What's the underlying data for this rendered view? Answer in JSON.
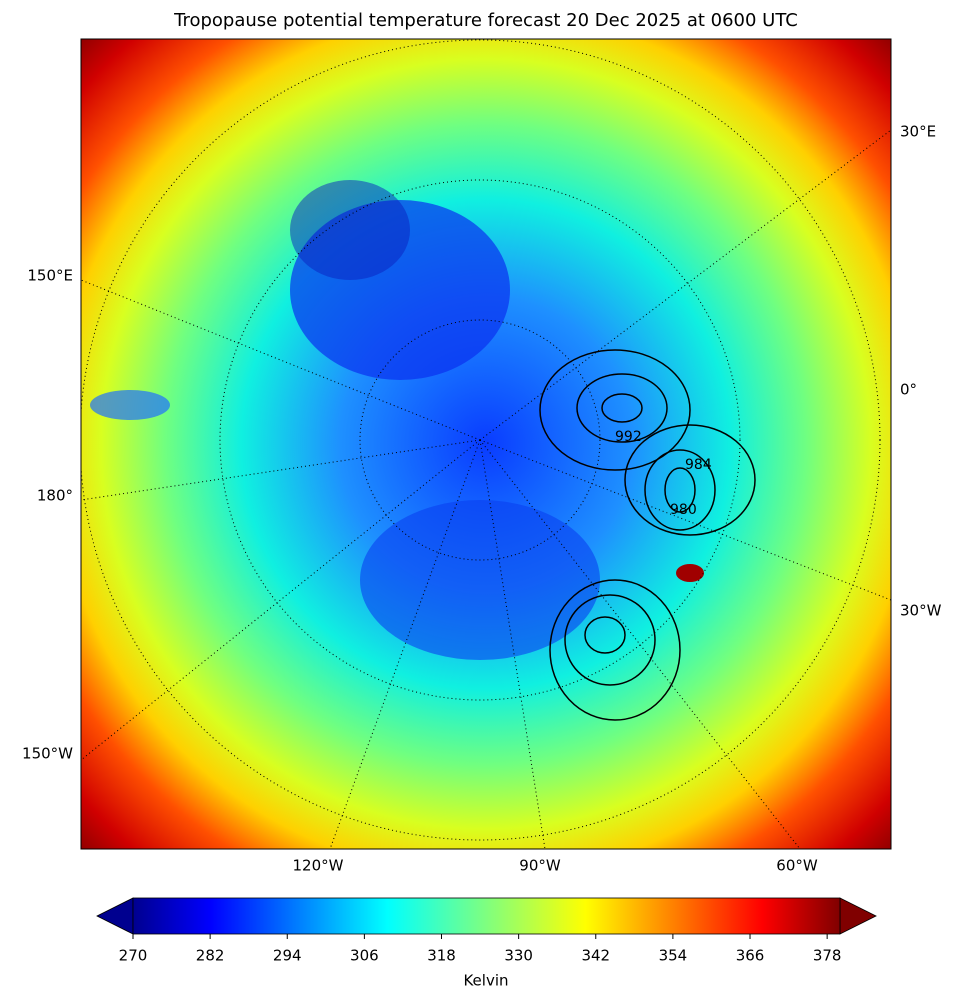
{
  "title": "Tropopause potential temperature forecast 20 Dec 2025 at 0600 UTC",
  "map": {
    "lon_labels": [
      "30°E",
      "150°E",
      "0°",
      "180°",
      "30°W",
      "150°W",
      "120°W",
      "90°W",
      "60°W"
    ],
    "contour_labels": [
      "992",
      "984",
      "980"
    ]
  },
  "colorbar": {
    "label": "Kelvin",
    "lim": [
      270,
      380
    ],
    "ticks": [
      270,
      282,
      294,
      306,
      318,
      330,
      342,
      354,
      366,
      378
    ]
  }
}
